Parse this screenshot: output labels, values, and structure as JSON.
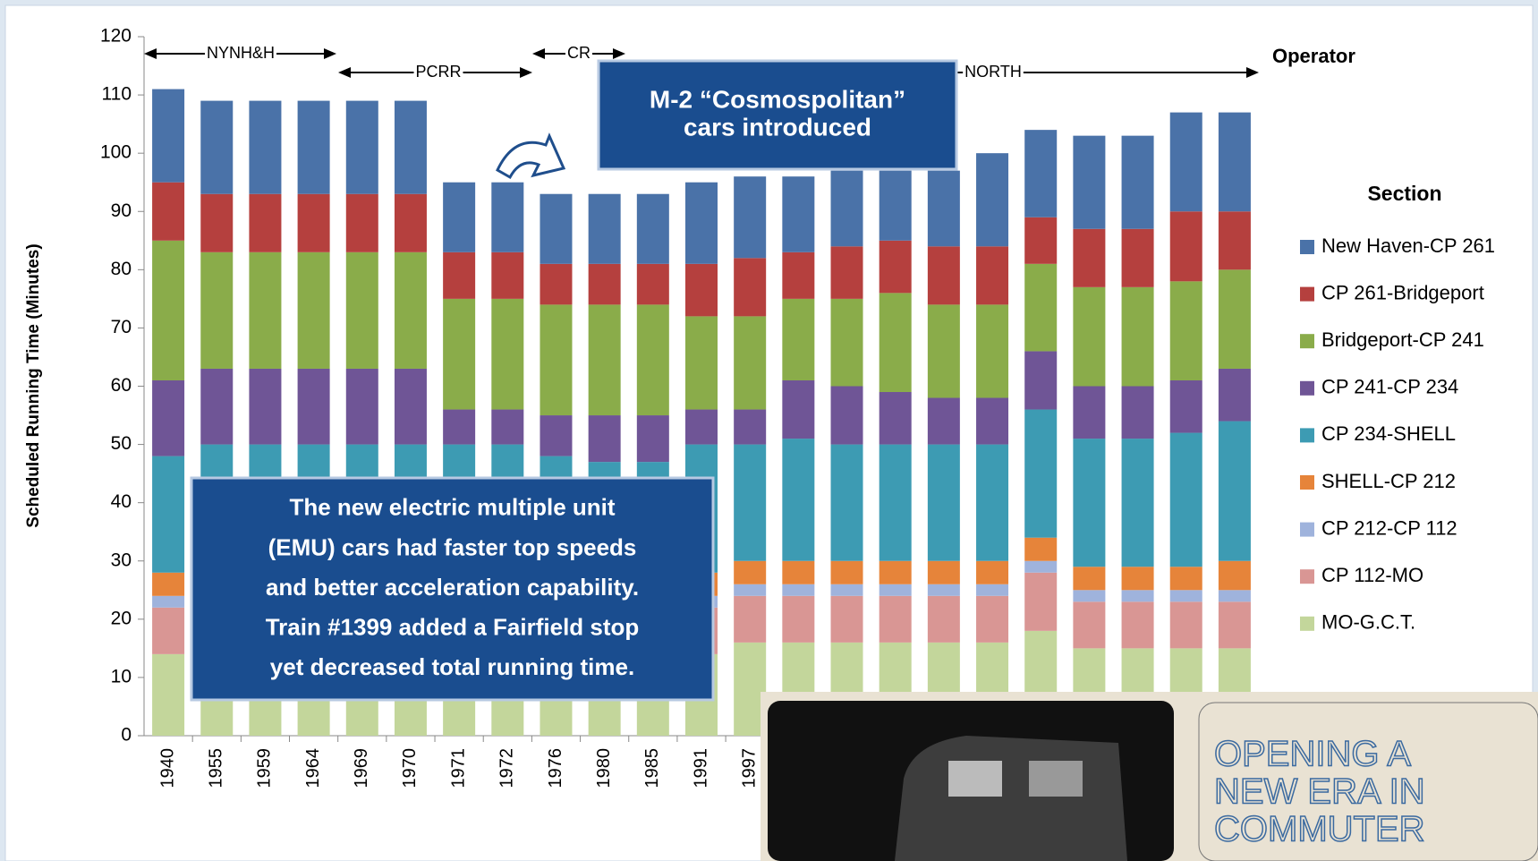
{
  "chart_data": {
    "type": "stacked_bar",
    "y_label": "Scheduled Running Time (Minutes)",
    "categories": [
      "1940",
      "1955",
      "1959",
      "1964",
      "1969",
      "1970",
      "1971",
      "1972",
      "1976",
      "1980",
      "1985",
      "1991",
      "1997",
      null,
      null,
      null,
      null,
      null,
      null,
      null,
      null,
      null,
      null
    ],
    "ylim": [
      0,
      120
    ],
    "yticks": [
      0,
      10,
      20,
      30,
      40,
      50,
      60,
      70,
      80,
      90,
      100,
      110,
      120
    ],
    "legend_title": "Section",
    "legend_position": "right",
    "series": [
      {
        "name": "New Haven-CP 261",
        "color": "#4a72a8",
        "values": [
          16,
          16,
          16,
          16,
          16,
          16,
          12,
          12,
          12,
          12,
          12,
          14,
          14,
          13,
          13,
          12,
          13,
          16,
          15,
          16,
          16,
          17,
          17
        ]
      },
      {
        "name": "CP 261-Bridgeport",
        "color": "#b5403e",
        "values": [
          10,
          10,
          10,
          10,
          10,
          10,
          8,
          8,
          7,
          7,
          7,
          9,
          10,
          8,
          9,
          9,
          10,
          10,
          8,
          10,
          10,
          12,
          10
        ]
      },
      {
        "name": "Bridgeport-CP 241",
        "color": "#8aac4a",
        "values": [
          24,
          20,
          20,
          20,
          20,
          20,
          19,
          19,
          19,
          19,
          19,
          16,
          16,
          14,
          15,
          17,
          16,
          16,
          15,
          17,
          17,
          17,
          17
        ]
      },
      {
        "name": "CP 241-CP 234",
        "color": "#6f5596",
        "values": [
          13,
          13,
          13,
          13,
          13,
          13,
          6,
          6,
          7,
          8,
          8,
          6,
          6,
          10,
          10,
          9,
          8,
          8,
          10,
          9,
          9,
          9,
          9
        ]
      },
      {
        "name": "CP 234-SHELL",
        "color": "#3d9bb3",
        "values": [
          20,
          22,
          22,
          22,
          22,
          22,
          22,
          22,
          20,
          19,
          19,
          22,
          20,
          21,
          20,
          20,
          20,
          20,
          22,
          22,
          22,
          23,
          24
        ]
      },
      {
        "name": "SHELL-CP 212",
        "color": "#e6843a",
        "values": [
          4,
          4,
          4,
          4,
          4,
          4,
          4,
          4,
          4,
          4,
          4,
          4,
          4,
          4,
          4,
          4,
          4,
          4,
          4,
          4,
          4,
          4,
          5
        ]
      },
      {
        "name": "CP 212-CP 112",
        "color": "#9fb3dc",
        "values": [
          2,
          2,
          2,
          2,
          2,
          2,
          2,
          2,
          2,
          2,
          2,
          2,
          2,
          2,
          2,
          2,
          2,
          2,
          2,
          2,
          2,
          2,
          2
        ]
      },
      {
        "name": "CP 112-MO",
        "color": "#d99694",
        "values": [
          8,
          8,
          8,
          8,
          8,
          8,
          8,
          8,
          8,
          8,
          8,
          8,
          8,
          8,
          8,
          8,
          8,
          8,
          10,
          8,
          8,
          8,
          8
        ]
      },
      {
        "name": "MO-G.C.T.",
        "color": "#c3d69b",
        "values": [
          14,
          14,
          14,
          14,
          14,
          14,
          14,
          14,
          14,
          14,
          14,
          14,
          16,
          16,
          16,
          16,
          16,
          16,
          18,
          15,
          15,
          15,
          15
        ]
      }
    ],
    "operator_label": "Operator",
    "operators": [
      "NYNH&H",
      "PCRR",
      "CR",
      "NORTH"
    ],
    "callouts": [
      [
        "M-2 “Cosmospolitan”",
        "cars introduced"
      ],
      [
        "The new electric multiple unit",
        "(EMU) cars had faster top speeds",
        "and better acceleration capability.",
        "Train #1399 added a Fairfield stop",
        "yet decreased total running time."
      ]
    ],
    "photo_text": [
      "OPENING A",
      "NEW ERA IN",
      "COMMUTER"
    ]
  }
}
